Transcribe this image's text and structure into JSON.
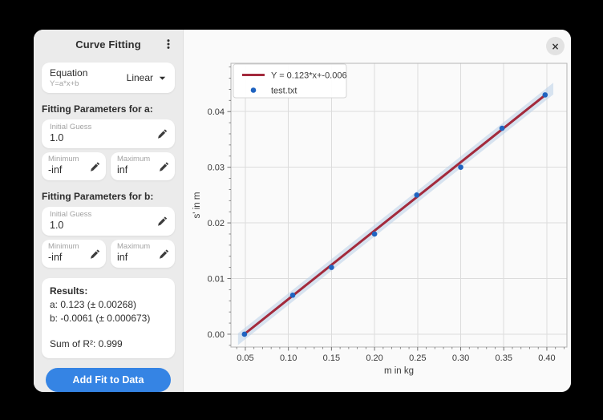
{
  "window": {
    "close_icon": "×",
    "menu_icon": "vertical-ellipsis"
  },
  "sidebar": {
    "title": "Curve Fitting",
    "equation": {
      "label": "Equation",
      "formula": "Y=a*x+b",
      "selected": "Linear"
    },
    "param_a": {
      "heading": "Fitting Parameters for a:",
      "initial_guess": {
        "label": "Initial Guess",
        "value": "1.0"
      },
      "minimum": {
        "label": "Minimum",
        "value": "-inf"
      },
      "maximum": {
        "label": "Maximum",
        "value": "inf"
      }
    },
    "param_b": {
      "heading": "Fitting Parameters for b:",
      "initial_guess": {
        "label": "Initial Guess",
        "value": "1.0"
      },
      "minimum": {
        "label": "Minimum",
        "value": "-inf"
      },
      "maximum": {
        "label": "Maximum",
        "value": "inf"
      }
    },
    "results": {
      "heading": "Results:",
      "line_a": "a: 0.123 (± 0.00268)",
      "line_b": "b: -0.0061 (± 0.000673)",
      "r2": "Sum of R²: 0.999"
    },
    "add_fit_button_label": "Add Fit to Data",
    "accent_color": "#3584e4"
  },
  "chart_data": {
    "type": "scatter",
    "title": "",
    "xlabel": "m in kg",
    "ylabel": "s' in m",
    "xlim": [
      0.0333,
      0.4233
    ],
    "ylim": [
      -0.00231,
      0.04867
    ],
    "x_ticks": [
      0.05,
      0.1,
      0.15,
      0.2,
      0.25,
      0.3,
      0.35,
      0.4
    ],
    "y_ticks": [
      0.0,
      0.01,
      0.02,
      0.03,
      0.04
    ],
    "x_minor_step": 0.01,
    "y_minor_step": 0.002,
    "grid": true,
    "legend_position": "upper left",
    "colors": {
      "grid": "#dcdcdc",
      "spine": "#b4b4b4",
      "tick": "#707070",
      "text": "#3a3a3a",
      "legend_border": "#d5d5d5"
    },
    "series": [
      {
        "name": "Y = 0.123*x+-0.006",
        "type": "line",
        "color": "#a32a3c",
        "slope": 0.123,
        "intercept": -0.006,
        "x_range": [
          0.048,
          0.398
        ],
        "confidence_band": {
          "color": "#b9cfe8",
          "opacity": 0.55,
          "half_width": 0.00105,
          "x_range": [
            0.0415,
            0.4075
          ]
        }
      },
      {
        "name": "test.txt",
        "type": "scatter",
        "color": "#1f63c0",
        "marker": "circle",
        "x": [
          0.049,
          0.105,
          0.15,
          0.2,
          0.249,
          0.3,
          0.348,
          0.398
        ],
        "y": [
          0.0,
          0.007,
          0.012,
          0.018,
          0.025,
          0.03,
          0.037,
          0.043
        ]
      }
    ]
  }
}
